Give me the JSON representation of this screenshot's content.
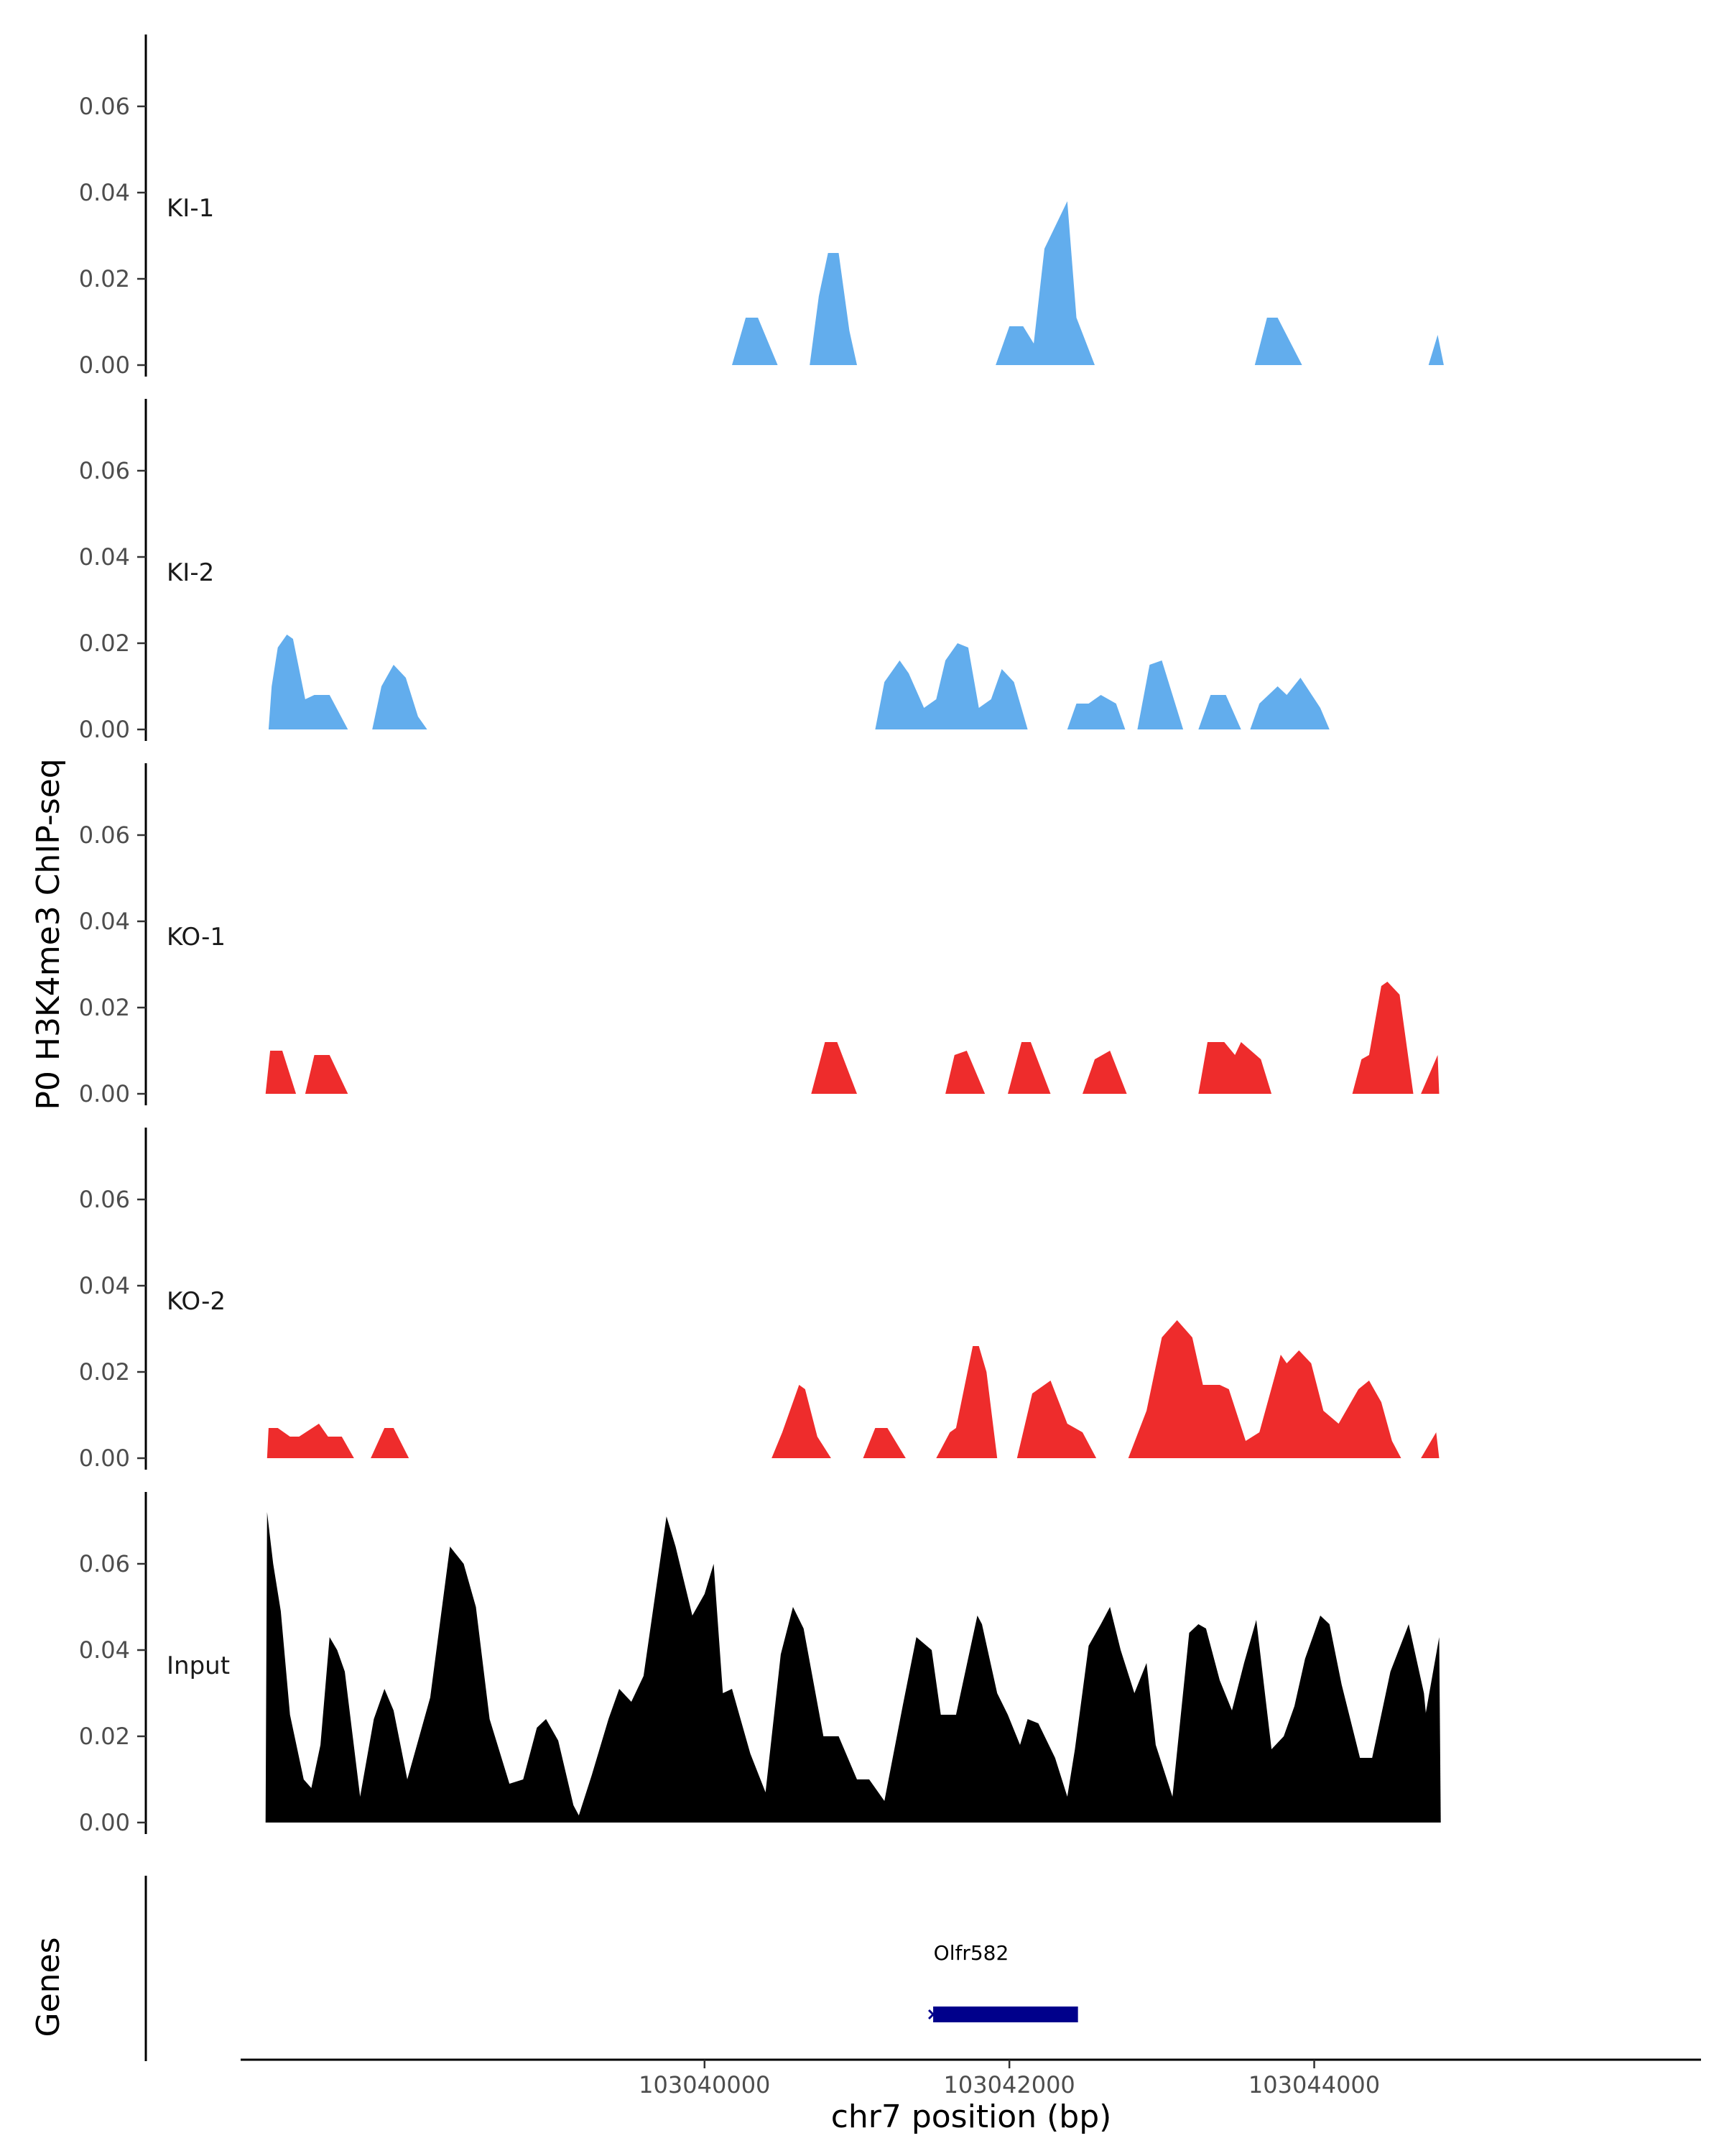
{
  "chart_data": {
    "type": "area",
    "ylabel": "P0 H3K4me3 ChIP-seq",
    "xlabel": "chr7 position (bp)",
    "x_ticks": [
      103040000,
      103042000,
      103044000
    ],
    "x_tick_labels": [
      "103040000",
      "103042000",
      "103044000"
    ],
    "xlim": [
      103036980,
      103046500
    ],
    "ylim": [
      0,
      0.075
    ],
    "y_ticks": [
      0,
      0.02,
      0.04,
      0.06
    ],
    "y_tick_labels": [
      "0.00",
      "0.02",
      "0.04",
      "0.06"
    ],
    "genes_label": "Genes",
    "gene": {
      "name": "Olfr582",
      "start": 103041500,
      "end": 103042450,
      "color": "#00008B"
    },
    "colors": {
      "KI": "#62ADED",
      "KO": "#EE2C2C",
      "Input": "#000000"
    },
    "series": [
      {
        "name": "KI-1",
        "color": "#62ADED",
        "points": [
          [
            103040180,
            0
          ],
          [
            103040270,
            0.011
          ],
          [
            103040350,
            0.011
          ],
          [
            103040480,
            0
          ],
          null,
          [
            103040690,
            0
          ],
          [
            103040750,
            0.016
          ],
          [
            103040810,
            0.026
          ],
          [
            103040880,
            0.026
          ],
          [
            103040950,
            0.008
          ],
          [
            103041000,
            0
          ],
          null,
          [
            103041910,
            0
          ],
          [
            103042000,
            0.009
          ],
          [
            103042090,
            0.009
          ],
          [
            103042160,
            0.005
          ],
          [
            103042230,
            0.027
          ],
          [
            103042380,
            0.038
          ],
          [
            103042440,
            0.011
          ],
          [
            103042560,
            0
          ],
          null,
          [
            103043610,
            0
          ],
          [
            103043690,
            0.011
          ],
          [
            103043760,
            0.011
          ],
          [
            103043920,
            0
          ],
          null,
          [
            103044750,
            0
          ],
          [
            103044810,
            0.007
          ],
          [
            103044850,
            0
          ]
        ]
      },
      {
        "name": "KI-2",
        "color": "#62ADED",
        "points": [
          [
            103037140,
            0
          ],
          [
            103037160,
            0.01
          ],
          [
            103037200,
            0.019
          ],
          [
            103037260,
            0.022
          ],
          [
            103037300,
            0.021
          ],
          [
            103037380,
            0.007
          ],
          [
            103037440,
            0.008
          ],
          [
            103037540,
            0.008
          ],
          [
            103037660,
            0
          ],
          null,
          [
            103037820,
            0
          ],
          [
            103037880,
            0.01
          ],
          [
            103037960,
            0.015
          ],
          [
            103038040,
            0.012
          ],
          [
            103038120,
            0.003
          ],
          [
            103038180,
            0
          ],
          null,
          [
            103041120,
            0
          ],
          [
            103041180,
            0.011
          ],
          [
            103041280,
            0.016
          ],
          [
            103041340,
            0.013
          ],
          [
            103041440,
            0.005
          ],
          [
            103041520,
            0.007
          ],
          [
            103041580,
            0.016
          ],
          [
            103041660,
            0.02
          ],
          [
            103041730,
            0.019
          ],
          [
            103041800,
            0.005
          ],
          [
            103041880,
            0.007
          ],
          [
            103041950,
            0.014
          ],
          [
            103042030,
            0.011
          ],
          [
            103042120,
            0
          ],
          null,
          [
            103042380,
            0
          ],
          [
            103042440,
            0.006
          ],
          [
            103042520,
            0.006
          ],
          [
            103042600,
            0.008
          ],
          [
            103042700,
            0.006
          ],
          [
            103042760,
            0
          ],
          null,
          [
            103042840,
            0
          ],
          [
            103042920,
            0.015
          ],
          [
            103043000,
            0.016
          ],
          [
            103043140,
            0
          ],
          null,
          [
            103043240,
            0
          ],
          [
            103043320,
            0.008
          ],
          [
            103043420,
            0.008
          ],
          [
            103043520,
            0
          ],
          null,
          [
            103043580,
            0
          ],
          [
            103043640,
            0.006
          ],
          [
            103043760,
            0.01
          ],
          [
            103043820,
            0.008
          ],
          [
            103043910,
            0.012
          ],
          [
            103044040,
            0.005
          ],
          [
            103044100,
            0
          ]
        ]
      },
      {
        "name": "KO-1",
        "color": "#EE2C2C",
        "points": [
          [
            103037120,
            0
          ],
          [
            103037150,
            0.01
          ],
          [
            103037230,
            0.01
          ],
          [
            103037320,
            0
          ],
          null,
          [
            103037380,
            0
          ],
          [
            103037440,
            0.009
          ],
          [
            103037540,
            0.009
          ],
          [
            103037660,
            0
          ],
          null,
          [
            103040700,
            0
          ],
          [
            103040790,
            0.012
          ],
          [
            103040870,
            0.012
          ],
          [
            103041000,
            0
          ],
          null,
          [
            103041580,
            0
          ],
          [
            103041640,
            0.009
          ],
          [
            103041720,
            0.01
          ],
          [
            103041840,
            0
          ],
          null,
          [
            103041990,
            0
          ],
          [
            103042080,
            0.012
          ],
          [
            103042140,
            0.012
          ],
          [
            103042270,
            0
          ],
          null,
          [
            103042480,
            0
          ],
          [
            103042560,
            0.008
          ],
          [
            103042660,
            0.01
          ],
          [
            103042770,
            0
          ],
          null,
          [
            103043240,
            0
          ],
          [
            103043300,
            0.012
          ],
          [
            103043410,
            0.012
          ],
          [
            103043480,
            0.009
          ],
          [
            103043520,
            0.012
          ],
          [
            103043650,
            0.008
          ],
          [
            103043720,
            0
          ],
          null,
          [
            103044250,
            0
          ],
          [
            103044310,
            0.008
          ],
          [
            103044360,
            0.009
          ],
          [
            103044440,
            0.025
          ],
          [
            103044480,
            0.026
          ],
          [
            103044560,
            0.023
          ],
          [
            103044650,
            0
          ],
          null,
          [
            103044700,
            0
          ],
          [
            103044810,
            0.009
          ],
          [
            103044820,
            0
          ]
        ]
      },
      {
        "name": "KO-2",
        "color": "#EE2C2C",
        "points": [
          [
            103037130,
            0
          ],
          [
            103037140,
            0.007
          ],
          [
            103037200,
            0.007
          ],
          [
            103037280,
            0.005
          ],
          [
            103037340,
            0.005
          ],
          [
            103037470,
            0.008
          ],
          [
            103037530,
            0.005
          ],
          [
            103037620,
            0.005
          ],
          [
            103037700,
            0
          ],
          null,
          [
            103037810,
            0
          ],
          [
            103037900,
            0.007
          ],
          [
            103037960,
            0.007
          ],
          [
            103038060,
            0
          ],
          null,
          [
            103040440,
            0
          ],
          [
            103040510,
            0.006
          ],
          [
            103040620,
            0.017
          ],
          [
            103040660,
            0.016
          ],
          [
            103040740,
            0.005
          ],
          [
            103040830,
            0
          ],
          null,
          [
            103041040,
            0
          ],
          [
            103041120,
            0.007
          ],
          [
            103041200,
            0.007
          ],
          [
            103041320,
            0
          ],
          null,
          [
            103041520,
            0
          ],
          [
            103041610,
            0.006
          ],
          [
            103041650,
            0.007
          ],
          [
            103041760,
            0.026
          ],
          [
            103041800,
            0.026
          ],
          [
            103041850,
            0.02
          ],
          [
            103041920,
            0
          ],
          null,
          [
            103042050,
            0
          ],
          [
            103042150,
            0.015
          ],
          [
            103042270,
            0.018
          ],
          [
            103042380,
            0.008
          ],
          [
            103042480,
            0.006
          ],
          [
            103042570,
            0
          ],
          null,
          [
            103042780,
            0
          ],
          [
            103042900,
            0.011
          ],
          [
            103043000,
            0.028
          ],
          [
            103043100,
            0.032
          ],
          [
            103043200,
            0.028
          ],
          [
            103043270,
            0.017
          ],
          [
            103043380,
            0.017
          ],
          [
            103043440,
            0.016
          ],
          [
            103043550,
            0.004
          ],
          [
            103043640,
            0.006
          ],
          [
            103043780,
            0.024
          ],
          [
            103043820,
            0.022
          ],
          [
            103043900,
            0.025
          ],
          [
            103043980,
            0.022
          ],
          [
            103044060,
            0.011
          ],
          [
            103044160,
            0.008
          ],
          [
            103044290,
            0.016
          ],
          [
            103044360,
            0.018
          ],
          [
            103044440,
            0.013
          ],
          [
            103044510,
            0.004
          ],
          [
            103044570,
            0
          ],
          null,
          [
            103044700,
            0
          ],
          [
            103044800,
            0.006
          ],
          [
            103044820,
            0
          ]
        ]
      },
      {
        "name": "Input",
        "color": "#000000",
        "points": [
          [
            103037120,
            0
          ],
          [
            103037130,
            0.072
          ],
          [
            103037170,
            0.06
          ],
          [
            103037220,
            0.049
          ],
          [
            103037280,
            0.025
          ],
          [
            103037370,
            0.01
          ],
          [
            103037420,
            0.008
          ],
          [
            103037480,
            0.018
          ],
          [
            103037540,
            0.043
          ],
          [
            103037590,
            0.04
          ],
          [
            103037640,
            0.035
          ],
          [
            103037740,
            0.006
          ],
          [
            103037830,
            0.024
          ],
          [
            103037900,
            0.031
          ],
          [
            103037960,
            0.026
          ],
          [
            103038050,
            0.01
          ],
          [
            103038200,
            0.029
          ],
          [
            103038330,
            0.064
          ],
          [
            103038420,
            0.06
          ],
          [
            103038500,
            0.05
          ],
          [
            103038590,
            0.024
          ],
          [
            103038720,
            0.009
          ],
          [
            103038810,
            0.01
          ],
          [
            103038900,
            0.022
          ],
          [
            103038960,
            0.024
          ],
          [
            103039040,
            0.019
          ],
          [
            103039140,
            0.004
          ],
          [
            103039200,
            0
          ],
          null,
          [
            103039160,
            0
          ],
          [
            103039260,
            0.011
          ],
          [
            103039370,
            0.024
          ],
          [
            103039440,
            0.031
          ],
          [
            103039520,
            0.028
          ],
          [
            103039600,
            0.034
          ],
          [
            103039750,
            0.071
          ],
          [
            103039810,
            0.064
          ],
          [
            103039920,
            0.048
          ],
          [
            103040000,
            0.053
          ],
          [
            103040060,
            0.06
          ],
          [
            103040120,
            0.03
          ],
          [
            103040180,
            0.031
          ],
          [
            103040300,
            0.016
          ],
          [
            103040400,
            0.007
          ],
          [
            103040500,
            0.039
          ],
          [
            103040580,
            0.05
          ],
          [
            103040650,
            0.045
          ],
          [
            103040780,
            0.02
          ],
          [
            103040880,
            0.02
          ],
          [
            103041000,
            0.01
          ],
          [
            103041080,
            0.01
          ],
          [
            103041180,
            0.005
          ],
          [
            103041300,
            0.027
          ],
          [
            103041390,
            0.043
          ],
          [
            103041490,
            0.04
          ],
          [
            103041550,
            0.025
          ],
          [
            103041650,
            0.025
          ],
          [
            103041790,
            0.048
          ],
          [
            103041820,
            0.046
          ],
          [
            103041920,
            0.03
          ],
          [
            103041990,
            0.025
          ],
          [
            103042070,
            0.018
          ],
          [
            103042120,
            0.024
          ],
          [
            103042190,
            0.023
          ],
          [
            103042300,
            0.015
          ],
          [
            103042380,
            0.006
          ],
          [
            103042430,
            0.017
          ],
          [
            103042520,
            0.041
          ],
          [
            103042600,
            0.046
          ],
          [
            103042660,
            0.05
          ],
          [
            103042730,
            0.04
          ],
          [
            103042820,
            0.03
          ],
          [
            103042900,
            0.037
          ],
          [
            103042960,
            0.018
          ],
          [
            103043070,
            0.006
          ],
          [
            103043180,
            0.044
          ],
          [
            103043240,
            0.046
          ],
          [
            103043290,
            0.045
          ],
          [
            103043380,
            0.033
          ],
          [
            103043460,
            0.026
          ],
          [
            103043540,
            0.037
          ],
          [
            103043620,
            0.047
          ],
          [
            103043720,
            0.017
          ],
          [
            103043800,
            0.02
          ],
          [
            103043870,
            0.027
          ],
          [
            103043940,
            0.038
          ],
          [
            103044040,
            0.048
          ],
          [
            103044100,
            0.046
          ],
          [
            103044180,
            0.032
          ],
          [
            103044300,
            0.015
          ],
          [
            103044380,
            0.015
          ],
          [
            103044500,
            0.035
          ],
          [
            103044620,
            0.046
          ],
          [
            103044720,
            0.03
          ],
          [
            103044800,
            0
          ],
          null,
          [
            103044640,
            0
          ],
          [
            103044720,
            0.023
          ],
          [
            103044820,
            0.043
          ],
          [
            103044830,
            0
          ]
        ]
      }
    ]
  }
}
